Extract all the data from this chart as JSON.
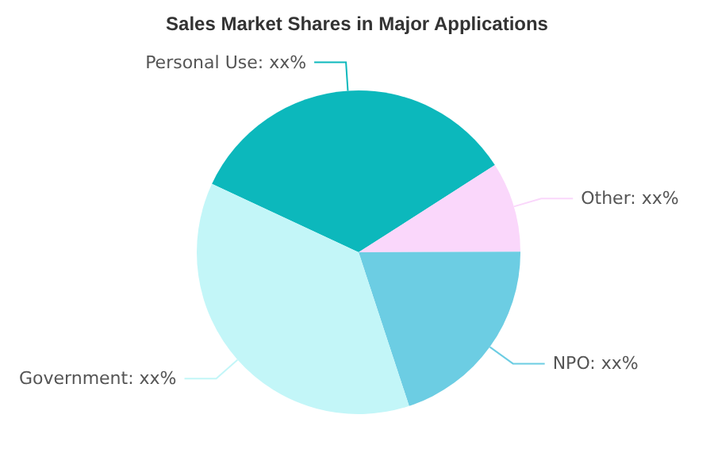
{
  "chart_data": {
    "type": "pie",
    "title": "Sales Market Shares in Major Applications",
    "categories": [
      "Personal Use",
      "Other",
      "NPO",
      "Government"
    ],
    "values": [
      34,
      9,
      20,
      37
    ],
    "colors": [
      "#0cb8bc",
      "#fad7fb",
      "#6ccde3",
      "#c3f6f8"
    ],
    "value_labels": [
      "xx%",
      "xx%",
      "xx%",
      "xx%"
    ],
    "legend": false
  }
}
